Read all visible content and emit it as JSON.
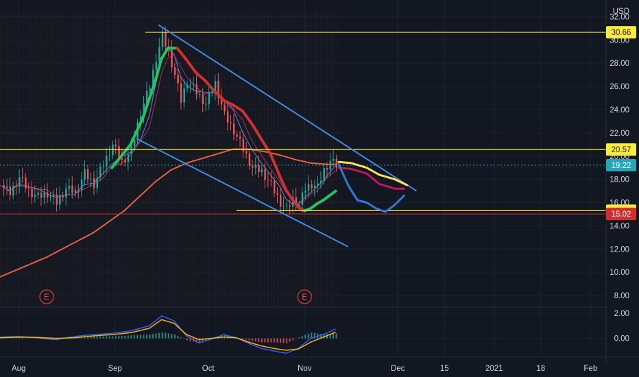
{
  "chart_data": {
    "type": "candlestick",
    "currency": "USD",
    "price_axis": {
      "ylim": [
        7.0,
        32.5
      ],
      "ticks": [
        "32.00",
        "30.00",
        "28.00",
        "26.00",
        "24.00",
        "22.00",
        "20.00",
        "18.00",
        "16.00",
        "14.00",
        "12.00",
        "10.00",
        "8.00"
      ],
      "tick_values": [
        32,
        30,
        28,
        26,
        24,
        22,
        20,
        18,
        16,
        14,
        12,
        10,
        8
      ]
    },
    "macd_axis": {
      "ylim": [
        -1.5,
        2.5
      ],
      "ticks": [
        "2.00",
        "0.00"
      ],
      "tick_values": [
        2,
        0
      ]
    },
    "time_axis": {
      "labels": [
        "Aug",
        "Sep",
        "Oct",
        "Nov",
        "Dec",
        "15",
        "2021",
        "18",
        "Feb"
      ],
      "label_days": [
        6,
        37,
        67,
        98,
        128,
        143,
        159,
        174,
        190
      ],
      "xlim": [
        0,
        195
      ]
    },
    "price_levels": [
      {
        "label": "30.66",
        "value": 30.66,
        "color": "#ffeb3b",
        "text_color": "#131722"
      },
      {
        "label": "20.57",
        "value": 20.57,
        "color": "#ffeb3b",
        "text_color": "#131722"
      },
      {
        "label": "19.22",
        "value": 19.22,
        "color": "#26a6b8",
        "text_color": "#ffffff"
      },
      {
        "label": "15.30",
        "value": 15.3,
        "color": "#ffeb3b",
        "text_color": "#131722"
      },
      {
        "label": "15.02",
        "value": 15.02,
        "color": "#d32f2f",
        "text_color": "#ffffff"
      }
    ],
    "earnings_markers": [
      {
        "label": "E",
        "day": 15
      },
      {
        "label": "E",
        "day": 98
      }
    ],
    "close_series": {
      "days": [
        0,
        3,
        6,
        9,
        12,
        15,
        18,
        21,
        24,
        27,
        30,
        33,
        36,
        39,
        42,
        45,
        48,
        50,
        52,
        54,
        56,
        58,
        60,
        63,
        66,
        69,
        72,
        75,
        78,
        81,
        84,
        87,
        90,
        92,
        94,
        96,
        98,
        100,
        102,
        104,
        106,
        108
      ],
      "values": [
        17.5,
        16.8,
        18.2,
        17.0,
        16.5,
        16.8,
        16.0,
        17.2,
        16.9,
        18.5,
        17.6,
        19.3,
        21.0,
        19.5,
        20.5,
        23.8,
        26.0,
        28.5,
        30.3,
        29.0,
        27.0,
        24.8,
        26.5,
        25.5,
        24.5,
        26.3,
        23.5,
        22.2,
        20.6,
        19.0,
        18.7,
        17.5,
        16.0,
        15.4,
        16.3,
        15.8,
        17.2,
        17.6,
        17.3,
        18.8,
        19.6,
        19.2
      ]
    },
    "ema_slow": {
      "days": [
        0,
        15,
        30,
        40,
        50,
        55,
        60,
        70,
        75,
        80,
        85,
        90,
        95,
        100,
        105,
        108
      ],
      "values": [
        9.6,
        11.3,
        13.4,
        15.3,
        17.8,
        18.8,
        19.4,
        20.2,
        20.6,
        20.6,
        20.4,
        20.1,
        19.7,
        19.4,
        19.3,
        19.3
      ],
      "color": "#e8613c"
    },
    "ma_fast": {
      "days": [
        36,
        42,
        46,
        50,
        52,
        54,
        57,
        60,
        63,
        66,
        69,
        72,
        75,
        78,
        81,
        84,
        87,
        90,
        92,
        94,
        96,
        98,
        100,
        102,
        104,
        106,
        108
      ],
      "values": [
        19.0,
        21.0,
        23.3,
        26.5,
        28.4,
        29.3,
        29.3,
        28.3,
        27.2,
        26.5,
        25.6,
        24.8,
        24.4,
        23.9,
        22.8,
        21.5,
        20.2,
        18.3,
        17.1,
        16.3,
        15.6,
        15.3,
        15.5,
        15.9,
        16.2,
        16.6,
        17.0
      ],
      "up_color": "#22c55e",
      "down_color": "#d32f2f"
    },
    "channel_lines": [
      {
        "from": [
          51,
          31.3
        ],
        "to": [
          134,
          17.0
        ],
        "color": "#3a8ee6"
      },
      {
        "from": [
          44,
          21.5
        ],
        "to": [
          112,
          12.2
        ],
        "color": "#3a8ee6"
      }
    ],
    "projections": [
      {
        "color": "#ffe25a",
        "days": [
          109,
          113,
          118,
          122,
          127,
          131
        ],
        "values": [
          19.5,
          19.4,
          19.0,
          18.4,
          18.0,
          17.5
        ]
      },
      {
        "color": "#c2185b",
        "days": [
          109,
          113,
          118,
          122,
          127,
          130
        ],
        "values": [
          19.0,
          18.9,
          18.5,
          17.6,
          17.2,
          17.2
        ]
      },
      {
        "color": "#2e7bd6",
        "days": [
          109,
          112,
          115,
          118,
          121,
          124,
          127,
          130
        ],
        "values": [
          19.3,
          17.5,
          16.2,
          16.0,
          15.5,
          15.2,
          15.8,
          16.6
        ]
      }
    ],
    "macd": {
      "days": [
        0,
        6,
        12,
        18,
        24,
        30,
        36,
        42,
        48,
        52,
        56,
        60,
        64,
        68,
        72,
        76,
        80,
        84,
        88,
        92,
        96,
        100,
        104,
        108
      ],
      "macd_line": [
        0.1,
        0.15,
        0.05,
        -0.1,
        0.15,
        0.3,
        0.4,
        0.6,
        1.0,
        1.8,
        1.4,
        0.2,
        -0.35,
        -0.05,
        0.3,
        0.05,
        -0.4,
        -0.8,
        -1.0,
        -1.2,
        -0.8,
        0.0,
        0.3,
        0.75
      ],
      "signal_line": [
        0.05,
        0.1,
        0.08,
        0.0,
        0.05,
        0.2,
        0.3,
        0.45,
        0.8,
        1.5,
        1.2,
        0.3,
        -0.1,
        0.0,
        0.1,
        0.05,
        -0.3,
        -0.6,
        -0.8,
        -0.95,
        -0.85,
        -0.3,
        0.1,
        0.5
      ]
    }
  }
}
